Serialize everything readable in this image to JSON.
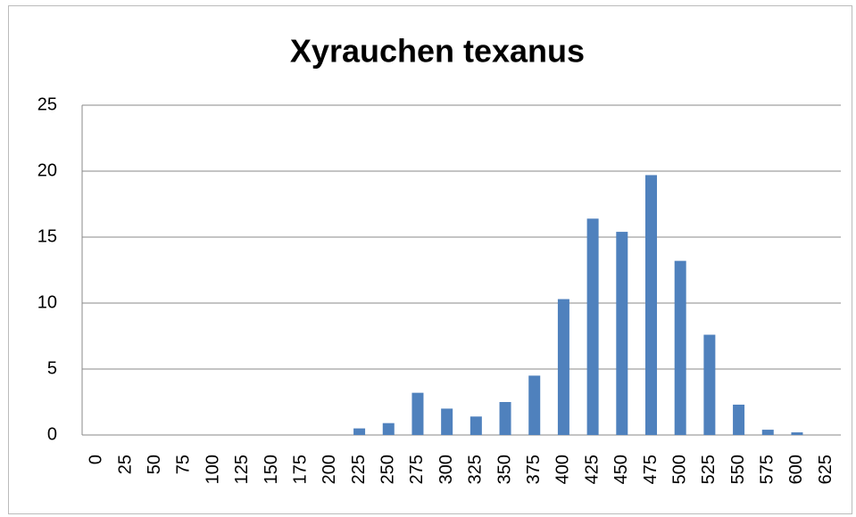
{
  "chart_data": {
    "type": "bar",
    "title": "Xyrauchen texanus",
    "categories": [
      "0",
      "25",
      "50",
      "75",
      "100",
      "125",
      "150",
      "175",
      "200",
      "225",
      "250",
      "275",
      "300",
      "325",
      "350",
      "375",
      "400",
      "425",
      "450",
      "475",
      "500",
      "525",
      "550",
      "575",
      "600",
      "625"
    ],
    "values": [
      0,
      0,
      0,
      0,
      0,
      0,
      0,
      0,
      0,
      0.5,
      0.9,
      3.2,
      2.0,
      1.4,
      2.5,
      4.5,
      10.3,
      16.4,
      15.4,
      19.7,
      13.2,
      7.6,
      2.3,
      0.4,
      0.2,
      0
    ],
    "color": "#4f81bd",
    "ylim": [
      0,
      25
    ],
    "yticks": [
      0,
      5,
      10,
      15,
      20,
      25
    ],
    "grid": true
  }
}
